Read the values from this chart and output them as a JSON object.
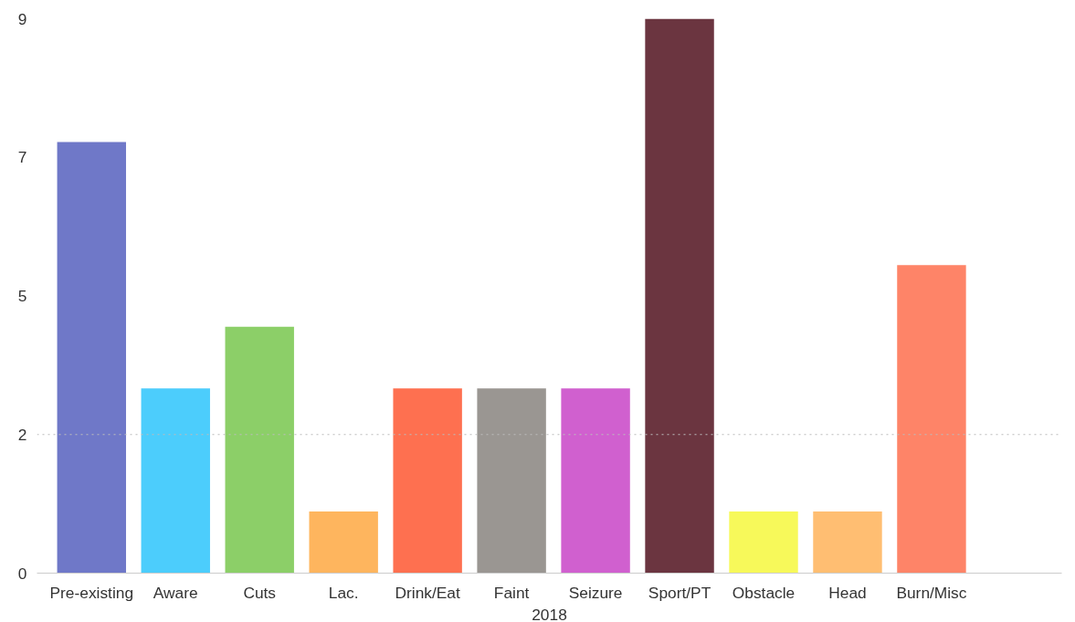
{
  "chart_data": {
    "type": "bar",
    "xlabel": "2018",
    "categories": [
      "Pre-existing",
      "Aware",
      "Cuts",
      "Lac.",
      "Drink/Eat",
      "Faint",
      "Seizure",
      "Sport/PT",
      "Obstacle",
      "Head",
      "Burn/Misc"
    ],
    "values": [
      7,
      3,
      4,
      1,
      3,
      3,
      3,
      9,
      1,
      1,
      5
    ],
    "colors": [
      "#6f78c8",
      "#4ccdfc",
      "#8ccf68",
      "#feb55e",
      "#fe7050",
      "#9a9692",
      "#d060cf",
      "#6b3540",
      "#f7f95a",
      "#ffbe72",
      "#fe8468"
    ],
    "ylim": [
      0,
      9
    ],
    "yticks": [
      0,
      {
        "value": 2.25,
        "label": "2"
      },
      {
        "value": 4.5,
        "label": "5"
      },
      {
        "value": 6.75,
        "label": "7"
      },
      9
    ],
    "ref_lines": [
      {
        "axis": "y",
        "value": 2.25,
        "label": null,
        "color": "#bbbbbb",
        "line_style": "dotted"
      }
    ],
    "grid": false
  }
}
